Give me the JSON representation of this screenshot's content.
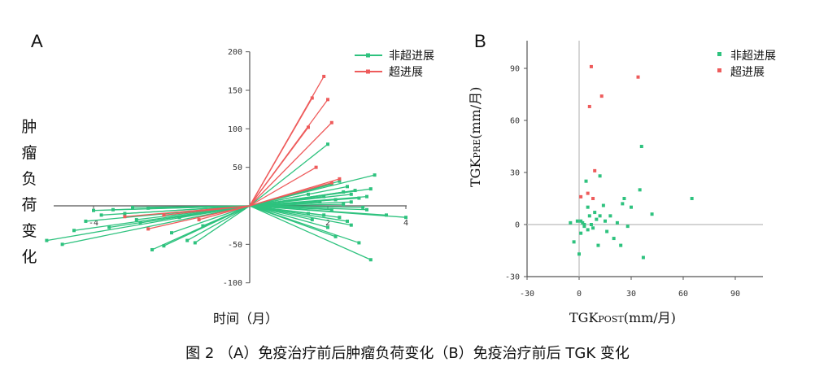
{
  "caption": "图 2 （A）免疫治疗前后肿瘤负荷变化（B）免疫治疗前后 TGK 变化",
  "colors": {
    "green": "#2ec27e",
    "red": "#ee5b5b",
    "axis": "#555555",
    "ref": "#bbbbbb"
  },
  "chart_data": [
    {
      "panel": "A",
      "type": "line",
      "title": "",
      "xlabel": "时间（月）",
      "ylabel": "肿瘤负荷变化",
      "xlim": [
        -5,
        4.3
      ],
      "ylim": [
        -100,
        200
      ],
      "x_ticks": [
        "-4",
        "",
        "",
        "",
        "2",
        "4"
      ],
      "x_tick_values": [
        -4,
        -2,
        0,
        0,
        2,
        4
      ],
      "y_ticks": [
        "200",
        "150",
        "100",
        "50",
        "",
        "-50",
        "-100"
      ],
      "y_tick_values": [
        200,
        150,
        100,
        50,
        0,
        -50,
        -100
      ],
      "legend": [
        "非超进展",
        "超进展"
      ],
      "series": [
        {
          "name": "非超进展",
          "color": "#2ec27e",
          "endpoints": [
            [
              -5.2,
              -45
            ],
            [
              -4.8,
              -50
            ],
            [
              -4.5,
              -32
            ],
            [
              -4.2,
              -20
            ],
            [
              -3.8,
              -12
            ],
            [
              -3.5,
              -5
            ],
            [
              -3.2,
              -10
            ],
            [
              -2.8,
              -22
            ],
            [
              -2.5,
              -57
            ],
            [
              -2.2,
              -52
            ],
            [
              -2.0,
              -35
            ],
            [
              -1.8,
              -15
            ],
            [
              -1.6,
              -45
            ],
            [
              -1.4,
              -48
            ],
            [
              -1.2,
              -26
            ],
            [
              -1.0,
              -5
            ],
            [
              -0.8,
              -3
            ],
            [
              -3.0,
              -2
            ],
            [
              -2.6,
              -3
            ],
            [
              -4.0,
              -6
            ],
            [
              -3.6,
              -28
            ],
            [
              -2.9,
              -18
            ],
            [
              1.9,
              -12
            ],
            [
              2.2,
              -40
            ],
            [
              2.5,
              -20
            ],
            [
              3.1,
              -70
            ],
            [
              1.6,
              -18
            ],
            [
              2.0,
              -28
            ],
            [
              2.3,
              -15
            ],
            [
              2.8,
              -48
            ],
            [
              3.5,
              -12
            ],
            [
              2.1,
              -5
            ],
            [
              1.5,
              -10
            ],
            [
              2.6,
              -25
            ],
            [
              4.0,
              -15
            ],
            [
              3.0,
              -5
            ],
            [
              2.0,
              80
            ],
            [
              3.2,
              40
            ],
            [
              2.5,
              25
            ],
            [
              2.4,
              18
            ],
            [
              2.6,
              15
            ],
            [
              2.8,
              10
            ],
            [
              1.8,
              5
            ],
            [
              2.2,
              8
            ],
            [
              3.0,
              12
            ],
            [
              2.7,
              20
            ],
            [
              2.3,
              32
            ],
            [
              2.1,
              28
            ],
            [
              1.9,
              12
            ],
            [
              2.6,
              5
            ],
            [
              3.1,
              22
            ],
            [
              1.5,
              15
            ],
            [
              2.4,
              2
            ],
            [
              2.9,
              -2
            ]
          ]
        },
        {
          "name": "超进展",
          "color": "#ee5b5b",
          "endpoints": [
            [
              1.9,
              168
            ],
            [
              2.0,
              138
            ],
            [
              2.1,
              108
            ],
            [
              1.6,
              140
            ],
            [
              1.5,
              102
            ],
            [
              1.7,
              50
            ],
            [
              2.3,
              35
            ],
            [
              2.1,
              30
            ],
            [
              -2.6,
              -30
            ],
            [
              -1.3,
              -18
            ],
            [
              -2.2,
              -12
            ],
            [
              -3.2,
              -14
            ]
          ]
        }
      ]
    },
    {
      "panel": "B",
      "type": "scatter",
      "title": "",
      "xlabel": "TGK",
      "xlabel_sub": "POST",
      "xlabel_unit": "(mm/月)",
      "ylabel": "TGK",
      "ylabel_sub": "PRE",
      "ylabel_unit": "(mm/月)",
      "xlim": [
        -30,
        105
      ],
      "ylim": [
        -30,
        105
      ],
      "x_ticks": [
        "-30",
        "0",
        "30",
        "60",
        "90"
      ],
      "x_tick_values": [
        -30,
        0,
        30,
        60,
        90
      ],
      "y_ticks": [
        "90",
        "60",
        "30",
        "0",
        "-30"
      ],
      "y_tick_values": [
        90,
        60,
        30,
        0,
        -30
      ],
      "legend": [
        "非超进展",
        "超进展"
      ],
      "series": [
        {
          "name": "非超进展",
          "color": "#2ec27e",
          "points": [
            [
              36,
              45
            ],
            [
              12,
              28
            ],
            [
              65,
              15
            ],
            [
              26,
              15
            ],
            [
              25,
              12
            ],
            [
              35,
              20
            ],
            [
              4,
              25
            ],
            [
              42,
              6
            ],
            [
              37,
              -19
            ],
            [
              -1,
              2
            ],
            [
              1,
              2
            ],
            [
              2,
              1
            ],
            [
              3,
              -1
            ],
            [
              5,
              -3
            ],
            [
              8,
              -2
            ],
            [
              10,
              3
            ],
            [
              12,
              5
            ],
            [
              15,
              2
            ],
            [
              18,
              5
            ],
            [
              22,
              1
            ],
            [
              28,
              -1
            ],
            [
              30,
              10
            ],
            [
              5,
              10
            ],
            [
              9,
              7
            ],
            [
              16,
              -4
            ],
            [
              20,
              -8
            ],
            [
              24,
              -12
            ],
            [
              0,
              -17
            ],
            [
              -3,
              -10
            ],
            [
              6,
              5
            ],
            [
              14,
              11
            ],
            [
              3,
              0
            ],
            [
              -5,
              1
            ],
            [
              1,
              -5
            ],
            [
              11,
              -12
            ],
            [
              7,
              0
            ]
          ]
        },
        {
          "name": "超进展",
          "color": "#ee5b5b",
          "points": [
            [
              7,
              91
            ],
            [
              34,
              85
            ],
            [
              13,
              74
            ],
            [
              6,
              68
            ],
            [
              9,
              31
            ],
            [
              5,
              18
            ],
            [
              1,
              16
            ],
            [
              8,
              15
            ]
          ]
        }
      ]
    }
  ]
}
